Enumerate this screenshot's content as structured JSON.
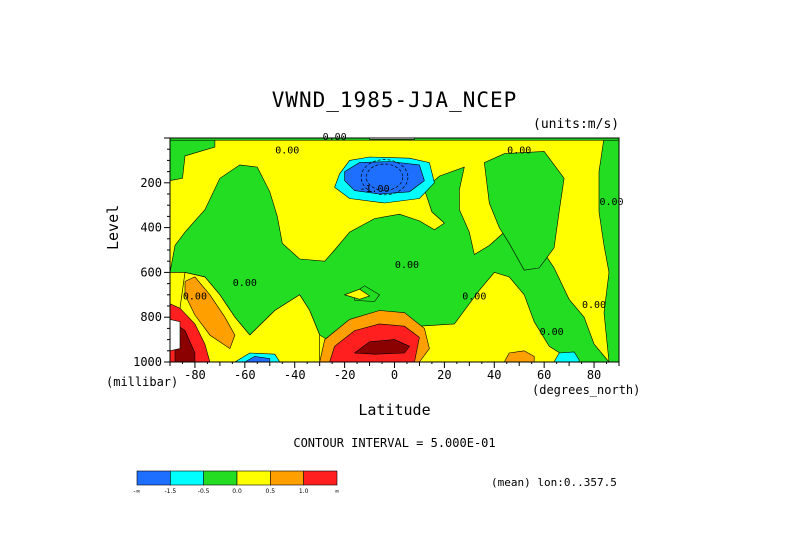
{
  "title": "VWND_1985-JJA_NCEP",
  "units_note": "(units:m/s)",
  "contour_interval_text": "CONTOUR INTERVAL = 5.000E-01",
  "mean_note": "(mean) lon:0..357.5",
  "colors": {
    "blue": "#1f6fff",
    "cyan": "#00ffff",
    "green": "#22dd22",
    "yellow": "#ffff00",
    "orange": "#ff9f00",
    "red": "#ff1f1f",
    "darkred": "#8b0000"
  },
  "chart_data": {
    "type": "heatmap",
    "title": "VWND_1985-JJA_NCEP",
    "xlabel": "Latitude",
    "xunit": "(degrees_north)",
    "ylabel": "Level",
    "yunit": "(millibar)",
    "xlim": [
      -90,
      90
    ],
    "ylim": [
      1000,
      0
    ],
    "xticks": [
      -80,
      -60,
      -40,
      -20,
      0,
      20,
      40,
      60,
      80
    ],
    "xtick_labels": [
      "-80",
      "-60",
      "-40",
      "-20",
      "0",
      "20",
      "40",
      "60",
      "80"
    ],
    "yticks": [
      200,
      400,
      600,
      800,
      1000
    ],
    "ytick_labels": [
      "200",
      "400",
      "600",
      "800",
      "1000"
    ],
    "contour_interval": 0.5,
    "contour_labels": [
      {
        "text": "0.00",
        "lat": -24,
        "lev": 8
      },
      {
        "text": "0.00",
        "lat": -43,
        "lev": 70
      },
      {
        "text": "-1.00",
        "lat": -8,
        "lev": 240
      },
      {
        "text": "0.00",
        "lat": 50,
        "lev": 70
      },
      {
        "text": "0.00",
        "lat": 87,
        "lev": 300
      },
      {
        "text": "0.00",
        "lat": 5,
        "lev": 580
      },
      {
        "text": "0.00",
        "lat": -60,
        "lev": 660
      },
      {
        "text": "0.00",
        "lat": -80,
        "lev": 720
      },
      {
        "text": "0.00",
        "lat": 32,
        "lev": 720
      },
      {
        "text": "0.00",
        "lat": 80,
        "lev": 760
      },
      {
        "text": "0.00",
        "lat": 63,
        "lev": 880
      }
    ],
    "colorbar": {
      "boundaries": [
        "-∞",
        "-1.5",
        "-0.5",
        "0.0",
        "0.5",
        "1.0",
        "∞"
      ],
      "colors": [
        "#1f6fff",
        "#00ffff",
        "#22dd22",
        "#ffff00",
        "#ff9f00",
        "#ff1f1f"
      ]
    }
  }
}
